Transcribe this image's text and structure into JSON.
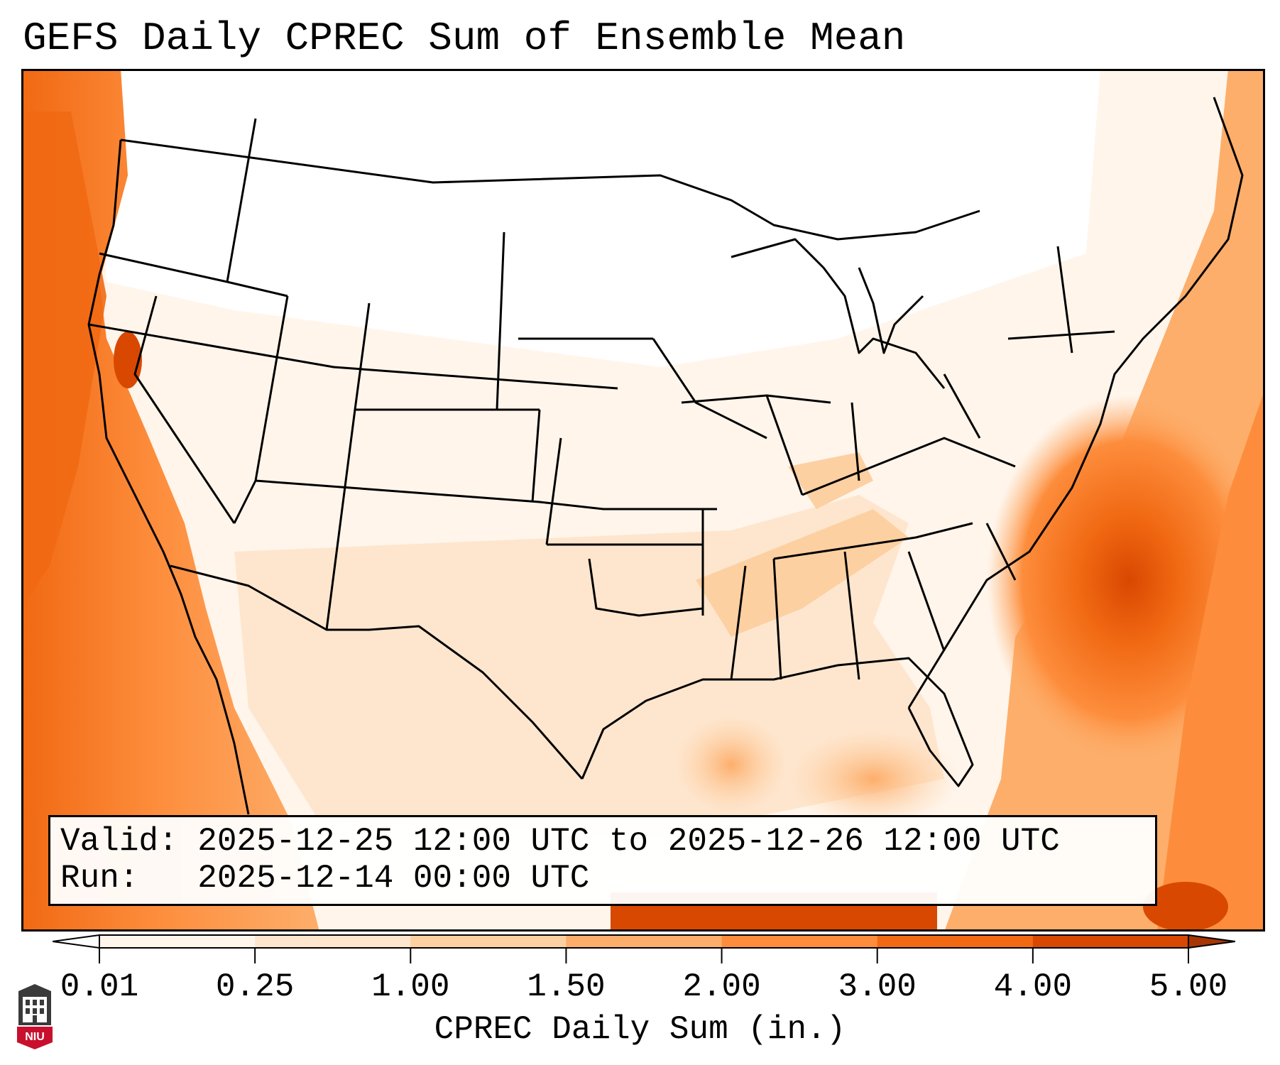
{
  "title": "GEFS Daily CPREC Sum of Ensemble Mean",
  "info": {
    "valid_label": "Valid:",
    "valid_value": "2025-12-25 12:00 UTC to 2025-12-26 12:00 UTC",
    "run_label": "Run:",
    "run_value": "2025-12-14 00:00 UTC"
  },
  "colorbar": {
    "label": "CPREC Daily Sum (in.)",
    "ticks": [
      "0.01",
      "0.25",
      "1.00",
      "1.50",
      "2.00",
      "3.00",
      "4.00",
      "5.00"
    ],
    "colors": [
      "#fff5eb",
      "#fee6ce",
      "#fdd0a2",
      "#fdae6b",
      "#fd8d3c",
      "#f16913",
      "#d94801",
      "#a63603"
    ],
    "extend": "both"
  },
  "logo": {
    "text": "NIU",
    "color": "#c8102e"
  }
}
